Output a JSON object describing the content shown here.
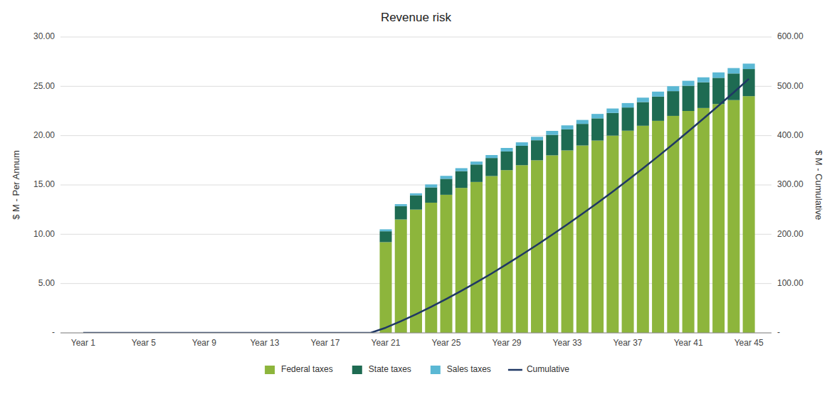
{
  "chart_data": {
    "type": "bar",
    "stacked": true,
    "title": "Revenue risk",
    "ylabel": "$ M - Per Annum",
    "y2label": "$ M - Cumulative",
    "x": [
      1,
      2,
      3,
      4,
      5,
      6,
      7,
      8,
      9,
      10,
      11,
      12,
      13,
      14,
      15,
      16,
      17,
      18,
      19,
      20,
      21,
      22,
      23,
      24,
      25,
      26,
      27,
      28,
      29,
      30,
      31,
      32,
      33,
      34,
      35,
      36,
      37,
      38,
      39,
      40,
      41,
      42,
      43,
      44,
      45
    ],
    "xlim": [
      -0.5,
      46.5
    ],
    "xticks": [
      {
        "value": 1,
        "label": "Year 1"
      },
      {
        "value": 5,
        "label": "Year 5"
      },
      {
        "value": 9,
        "label": "Year 9"
      },
      {
        "value": 13,
        "label": "Year 13"
      },
      {
        "value": 17,
        "label": "Year 17"
      },
      {
        "value": 21,
        "label": "Year 21"
      },
      {
        "value": 25,
        "label": "Year 25"
      },
      {
        "value": 29,
        "label": "Year 29"
      },
      {
        "value": 33,
        "label": "Year 33"
      },
      {
        "value": 37,
        "label": "Year 37"
      },
      {
        "value": 41,
        "label": "Year 41"
      },
      {
        "value": 45,
        "label": "Year 45"
      }
    ],
    "ylim": [
      0,
      30
    ],
    "yticks": [
      {
        "value": 0,
        "label": "-"
      },
      {
        "value": 5,
        "label": "5.00"
      },
      {
        "value": 10,
        "label": "10.00"
      },
      {
        "value": 15,
        "label": "15.00"
      },
      {
        "value": 20,
        "label": "20.00"
      },
      {
        "value": 25,
        "label": "25.00"
      },
      {
        "value": 30,
        "label": "30.00"
      }
    ],
    "y2lim": [
      0,
      600
    ],
    "y2ticks": [
      {
        "value": 0,
        "label": "-"
      },
      {
        "value": 100,
        "label": "100.00"
      },
      {
        "value": 200,
        "label": "200.00"
      },
      {
        "value": 300,
        "label": "300.00"
      },
      {
        "value": 400,
        "label": "400.00"
      },
      {
        "value": 500,
        "label": "500.00"
      },
      {
        "value": 600,
        "label": "600.00"
      }
    ],
    "grid": true,
    "legend": "bottom",
    "series": [
      {
        "name": "Federal taxes",
        "type": "bar",
        "color": "#8DB53C",
        "values": [
          0,
          0,
          0,
          0,
          0,
          0,
          0,
          0,
          0,
          0,
          0,
          0,
          0,
          0,
          0,
          0,
          0,
          0,
          0,
          0,
          9.2,
          11.5,
          12.5,
          13.2,
          14.0,
          14.7,
          15.3,
          15.9,
          16.5,
          17.0,
          17.5,
          18.0,
          18.5,
          19.0,
          19.5,
          20.0,
          20.5,
          21.0,
          21.5,
          22.0,
          22.5,
          22.8,
          23.2,
          23.6,
          24.0
        ]
      },
      {
        "name": "State taxes",
        "type": "bar",
        "color": "#1E6B52",
        "values": [
          0,
          0,
          0,
          0,
          0,
          0,
          0,
          0,
          0,
          0,
          0,
          0,
          0,
          0,
          0,
          0,
          0,
          0,
          0,
          0,
          1.1,
          1.35,
          1.45,
          1.55,
          1.62,
          1.7,
          1.77,
          1.83,
          1.9,
          1.97,
          2.03,
          2.08,
          2.14,
          2.19,
          2.25,
          2.3,
          2.35,
          2.4,
          2.46,
          2.51,
          2.56,
          2.61,
          2.66,
          2.7,
          2.75
        ]
      },
      {
        "name": "Sales taxes",
        "type": "bar",
        "color": "#5BB8D4",
        "values": [
          0,
          0,
          0,
          0,
          0,
          0,
          0,
          0,
          0,
          0,
          0,
          0,
          0,
          0,
          0,
          0,
          0,
          0,
          0,
          0,
          0.2,
          0.2,
          0.2,
          0.3,
          0.3,
          0.3,
          0.3,
          0.3,
          0.35,
          0.35,
          0.35,
          0.4,
          0.4,
          0.4,
          0.45,
          0.45,
          0.45,
          0.45,
          0.5,
          0.5,
          0.5,
          0.5,
          0.55,
          0.55,
          0.55
        ]
      },
      {
        "name": "Cumulative",
        "type": "line",
        "axis": "y2",
        "color": "#1F3864",
        "values": [
          0,
          0,
          0,
          0,
          0,
          0,
          0,
          0,
          0,
          0,
          0,
          0,
          0,
          0,
          0,
          0,
          0,
          0,
          0,
          0,
          10.5,
          23.5,
          37.7,
          52.7,
          68.6,
          85.2,
          102.5,
          120.5,
          139.3,
          158.6,
          178.5,
          199.0,
          220.0,
          241.5,
          263.7,
          286.4,
          309.7,
          333.5,
          357.9,
          382.9,
          408.5,
          434.4,
          460.8,
          487.5,
          515.0
        ]
      }
    ]
  }
}
